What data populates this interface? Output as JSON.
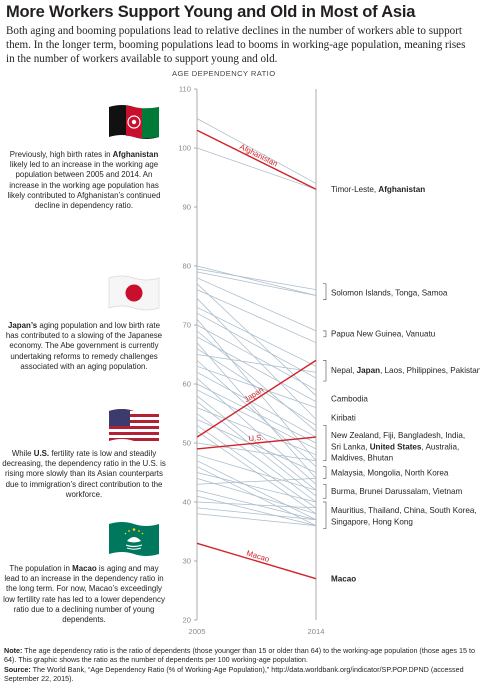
{
  "title": "More Workers Support Young and Old in Most of Asia",
  "subtitle": "Both aging and booming populations lead to relative declines in the number of workers able to support them. In the longer term, booming populations lead to booms in working-age population, meaning rises in the number of workers available to support young and old.",
  "annotations": {
    "afghanistan": {
      "pre": "Previously, high birth rates in",
      "bold": "Afghanistan",
      "post": "likely led to an increase in the working age population between 2005 and 2014. An increase in the working age population has likely contributed to Afghanistan’s continued decline in dependency ratio."
    },
    "japan": {
      "bold": "Japan’s",
      "post": "aging population and low birth rate has contributed to a slowing of the Japanese economy. The Abe government is currently undertaking reforms to remedy challenges associated with an aging population."
    },
    "us": {
      "pre": "While",
      "bold": "U.S.",
      "post": "fertility rate is low and steadily decreasing, the dependency ratio in the U.S. is rising more slowly than its Asian counterparts due to immigration’s direct contribution to the workforce."
    },
    "macao": {
      "pre": "The population in",
      "bold": "Macao",
      "post": "is aging and may lead to an increase in the dependency ratio in the long term. For now, Macao’s exceedingly low fertility rate has led to a lower dependency ratio due to a declining number of young dependents."
    }
  },
  "footnote": {
    "note_label": "Note:",
    "note_text": "The age dependency ratio is the ratio of dependents (those younger than 15 or older than 64) to the working-age population (those ages 15 to 64). This graphic shows the ratio as the number of dependents per 100 working-age population.",
    "source_label": "Source:",
    "source_text": "The World Bank, “Age Dependency Ratio (% of Working-Age Population),” http://data.worldbank.org/indicator/SP.POP.DPND (accessed September 22, 2015)."
  },
  "colors": {
    "highlight": "#d2232a",
    "other": "#a9bccb",
    "axis": "#9a9a9a",
    "text": "#231f20"
  },
  "chart_data": {
    "type": "line",
    "ylabel": "AGE DEPENDENCY RATIO",
    "x": [
      "2005",
      "2014"
    ],
    "ylim": [
      20,
      110
    ],
    "yticks": [
      20,
      30,
      40,
      50,
      60,
      70,
      80,
      90,
      100,
      110
    ],
    "highlight_series": [
      {
        "name": "Afghanistan",
        "values": [
          103,
          93
        ]
      },
      {
        "name": "Japan",
        "values": [
          51,
          64
        ]
      },
      {
        "name": "U.S.",
        "values": [
          49,
          51
        ]
      },
      {
        "name": "Macao",
        "values": [
          33,
          27
        ]
      }
    ],
    "other_series": [
      {
        "values": [
          105,
          94
        ]
      },
      {
        "values": [
          100,
          93
        ]
      },
      {
        "values": [
          80,
          75
        ]
      },
      {
        "values": [
          79.5,
          76
        ]
      },
      {
        "values": [
          79,
          75
        ]
      },
      {
        "values": [
          78,
          69
        ]
      },
      {
        "values": [
          77,
          58
        ]
      },
      {
        "values": [
          76,
          67
        ]
      },
      {
        "values": [
          74.5,
          54
        ]
      },
      {
        "values": [
          73,
          63
        ]
      },
      {
        "values": [
          72,
          61
        ]
      },
      {
        "values": [
          71,
          47
        ]
      },
      {
        "values": [
          70,
          59
        ]
      },
      {
        "values": [
          69,
          52
        ]
      },
      {
        "values": [
          68,
          57
        ]
      },
      {
        "values": [
          67,
          44
        ]
      },
      {
        "values": [
          66,
          53
        ]
      },
      {
        "values": [
          65,
          62
        ]
      },
      {
        "values": [
          64,
          46
        ]
      },
      {
        "values": [
          63,
          56
        ]
      },
      {
        "values": [
          62,
          51
        ]
      },
      {
        "values": [
          61,
          43
        ]
      },
      {
        "values": [
          60,
          50
        ]
      },
      {
        "values": [
          59,
          49
        ]
      },
      {
        "values": [
          58,
          42
        ]
      },
      {
        "values": [
          57,
          41
        ]
      },
      {
        "values": [
          56,
          48
        ]
      },
      {
        "values": [
          55,
          40
        ]
      },
      {
        "values": [
          54,
          45
        ]
      },
      {
        "values": [
          53,
          39
        ]
      },
      {
        "values": [
          52,
          38
        ]
      },
      {
        "values": [
          50,
          47
        ]
      },
      {
        "values": [
          48,
          42
        ]
      },
      {
        "values": [
          47,
          37
        ]
      },
      {
        "values": [
          46,
          36
        ]
      },
      {
        "values": [
          45,
          40
        ]
      },
      {
        "values": [
          44,
          38
        ]
      },
      {
        "values": [
          43,
          44
        ]
      },
      {
        "values": [
          42,
          37
        ]
      },
      {
        "values": [
          41,
          36
        ]
      },
      {
        "values": [
          40,
          39
        ]
      },
      {
        "values": [
          39,
          37
        ]
      },
      {
        "values": [
          38,
          36
        ]
      }
    ],
    "group_labels": [
      {
        "parts": [
          {
            "t": "Timor-Leste, ",
            "b": false
          },
          {
            "t": "Afghanistan",
            "b": true
          }
        ],
        "y": 93,
        "bracket": false
      },
      {
        "parts": [
          {
            "t": "Solomon Islands, Tonga, Samoa",
            "b": false
          }
        ],
        "y": 75.5,
        "bracket": [
          74.3,
          77
        ]
      },
      {
        "parts": [
          {
            "t": "Papua New Guinea, Vanuatu",
            "b": false
          }
        ],
        "y": 68.5,
        "bracket": [
          68,
          69
        ]
      },
      {
        "parts": [
          {
            "t": "Nepal, ",
            "b": false
          },
          {
            "t": "Japan",
            "b": true
          },
          {
            "t": ", Laos, Philippines, Pakistan",
            "b": false
          }
        ],
        "y": 62.3,
        "bracket": [
          60.5,
          64
        ]
      },
      {
        "parts": [
          {
            "t": "Cambodia",
            "b": false
          }
        ],
        "y": 57.5,
        "bracket": false
      },
      {
        "parts": [
          {
            "t": "Kiribati",
            "b": false
          }
        ],
        "y": 54.3,
        "bracket": false
      },
      {
        "parts": [
          {
            "t": "New Zealand, Fiji, Bangladesh, India,",
            "b": false
          }
        ],
        "y": 51.3,
        "bracket": [
          47,
          53
        ]
      },
      {
        "parts": [
          {
            "t": "Sri Lanka, ",
            "b": false
          },
          {
            "t": "United States",
            "b": true
          },
          {
            "t": ", Australia,",
            "b": false
          }
        ],
        "y": 49.4,
        "bracket": false
      },
      {
        "parts": [
          {
            "t": "Maldives, Bhutan",
            "b": false
          }
        ],
        "y": 47.5,
        "bracket": false
      },
      {
        "parts": [
          {
            "t": "Malaysia, Mongolia, North Korea",
            "b": false
          }
        ],
        "y": 45,
        "bracket": [
          44,
          46
        ]
      },
      {
        "parts": [
          {
            "t": "Burma, Brunei Darussalam, Vietnam",
            "b": false
          }
        ],
        "y": 41.8,
        "bracket": [
          40.6,
          43
        ]
      },
      {
        "parts": [
          {
            "t": "Mauritius, Thailand, China, South Korea,",
            "b": false
          }
        ],
        "y": 38.6,
        "bracket": [
          35.5,
          40
        ]
      },
      {
        "parts": [
          {
            "t": "Singapore, Hong Kong",
            "b": false
          }
        ],
        "y": 36.7,
        "bracket": false
      },
      {
        "parts": [
          {
            "t": "Macao",
            "b": true
          }
        ],
        "y": 27,
        "bracket": false
      }
    ]
  }
}
